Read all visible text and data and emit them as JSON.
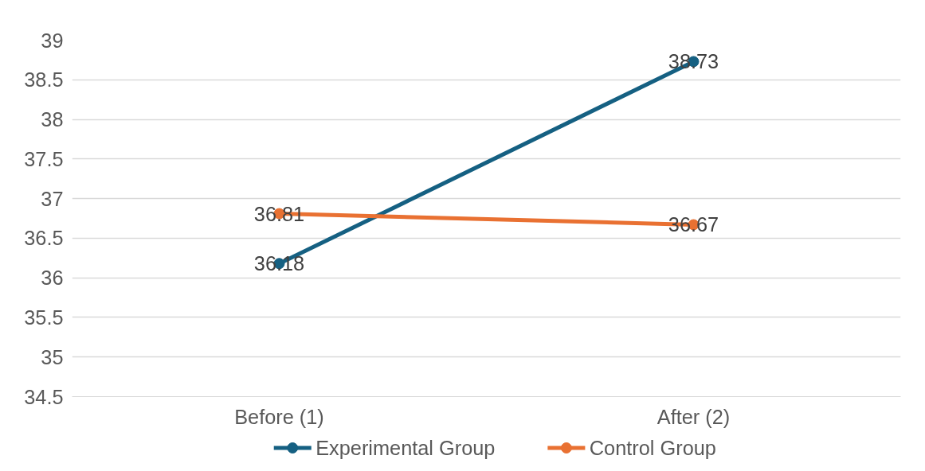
{
  "chart_data": {
    "type": "line",
    "categories": [
      "Before (1)",
      "After (2)"
    ],
    "series": [
      {
        "name": "Experimental Group",
        "color": "#156082",
        "values": [
          36.18,
          38.73
        ]
      },
      {
        "name": "Control Group",
        "color": "#e97132",
        "values": [
          36.81,
          36.67
        ]
      }
    ],
    "ylim": [
      34.5,
      39
    ],
    "yticks": [
      34.5,
      35,
      35.5,
      36,
      36.5,
      37,
      37.5,
      38,
      38.5,
      39
    ],
    "grid": "y",
    "legend": "bottom",
    "marker": "circle",
    "line_style": "solid",
    "data_labels": true
  }
}
